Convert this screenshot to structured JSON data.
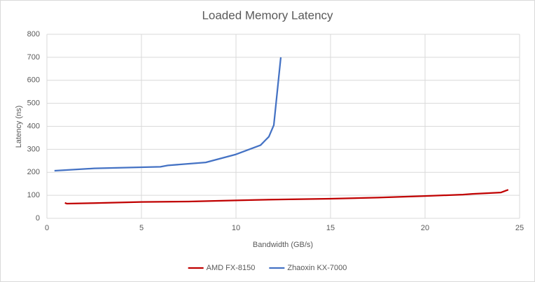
{
  "chart_data": {
    "type": "line",
    "title": "Loaded Memory Latency",
    "x_label": "Bandwidth (GB/s)",
    "y_label": "Latency (ns)",
    "xlim": [
      0,
      25
    ],
    "xticks": [
      0,
      5,
      10,
      15,
      20,
      25
    ],
    "ylim": [
      0,
      800
    ],
    "yticks": [
      0,
      100,
      200,
      300,
      400,
      500,
      600,
      700,
      800
    ],
    "grid": true,
    "legend": "bottom",
    "series": [
      {
        "name": "AMD FX-8150",
        "color": "#c00000",
        "x": [
          0.95,
          1.05,
          2.5,
          5,
          7.5,
          10,
          11,
          12.5,
          15,
          17.5,
          20,
          22,
          22.5,
          24,
          24.4
        ],
        "values": [
          67,
          64,
          66,
          71,
          73,
          78,
          80,
          82,
          85,
          90,
          97,
          103,
          106,
          112,
          124
        ]
      },
      {
        "name": "Zhaoxin KX-7000",
        "color": "#4472c4",
        "x": [
          0.4,
          2.5,
          5,
          6,
          6.4,
          8.4,
          10,
          11.3,
          11.74,
          12.0,
          12.37
        ],
        "values": [
          207,
          217,
          222,
          224,
          230,
          243,
          278,
          318,
          355,
          405,
          700
        ]
      }
    ]
  }
}
